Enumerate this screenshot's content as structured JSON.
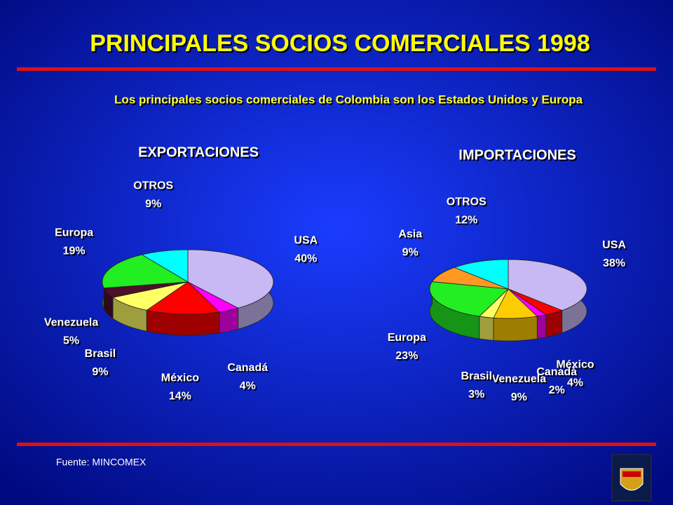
{
  "title": "PRINCIPALES SOCIOS COMERCIALES 1998",
  "subtitle": "Los principales socios comerciales de Colombia son los Estados Unidos y Europa",
  "source": "Fuente:  MINCOMEX",
  "chart_data": [
    {
      "type": "pie",
      "title": "EXPORTACIONES",
      "categories": [
        "USA",
        "Canadá",
        "México",
        "Brasil",
        "Venezuela",
        "Europa",
        "OTROS"
      ],
      "values": [
        40,
        4,
        14,
        9,
        5,
        19,
        9
      ],
      "value_labels": [
        "40%",
        "4%",
        "14%",
        "9%",
        "5%",
        "19%",
        "9%"
      ],
      "colors": [
        "#c8b8f4",
        "#ff00ff",
        "#ff0000",
        "#ffff66",
        "#4d0f2a",
        "#22ee22",
        "#00ffff"
      ]
    },
    {
      "type": "pie",
      "title": "IMPORTACIONES",
      "categories": [
        "USA",
        "México",
        "Canadá",
        "Venezuela",
        "Brasil",
        "Europa",
        "Asia",
        "OTROS"
      ],
      "values": [
        38,
        4,
        2,
        9,
        3,
        23,
        9,
        12
      ],
      "value_labels": [
        "38%",
        "4%",
        "2%",
        "9%",
        "3%",
        "23%",
        "9%",
        "12%"
      ],
      "colors": [
        "#c8b8f4",
        "#ff0000",
        "#ff00ff",
        "#ffcc00",
        "#ffff66",
        "#22ee22",
        "#ff9922",
        "#00ffff"
      ]
    }
  ]
}
